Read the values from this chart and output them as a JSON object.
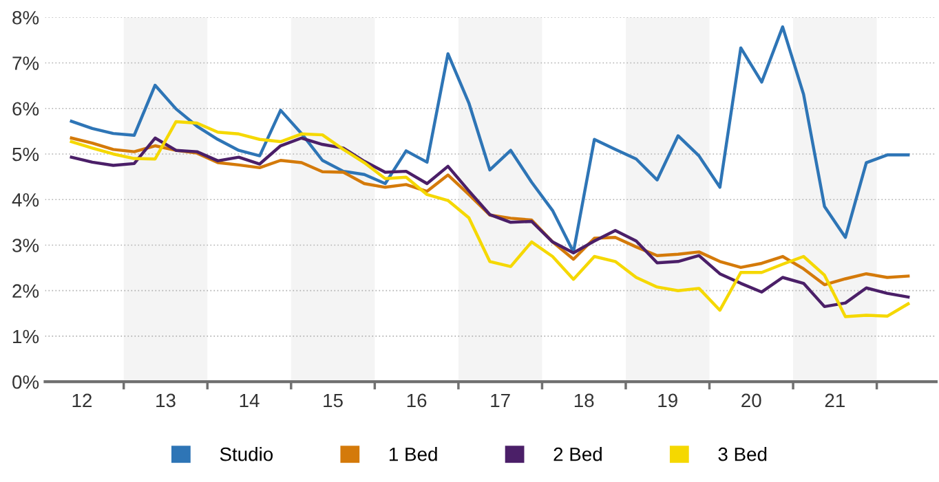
{
  "chart_data": {
    "type": "line",
    "x": [
      11.875,
      12.125,
      12.375,
      12.625,
      12.875,
      13.125,
      13.375,
      13.625,
      13.875,
      14.125,
      14.375,
      14.625,
      14.875,
      15.125,
      15.375,
      15.625,
      15.875,
      16.125,
      16.375,
      16.625,
      16.875,
      17.125,
      17.375,
      17.625,
      17.875,
      18.125,
      18.375,
      18.625,
      18.875,
      19.125,
      19.375,
      19.625,
      19.875,
      20.125,
      20.375,
      20.625,
      20.875,
      21.125,
      21.375,
      21.625,
      21.875
    ],
    "series": [
      {
        "name": "Studio",
        "color": "#2e75b6",
        "values": [
          5.72,
          5.56,
          5.45,
          5.41,
          6.51,
          5.99,
          5.61,
          5.32,
          5.08,
          4.96,
          5.96,
          5.45,
          4.86,
          4.62,
          4.55,
          4.35,
          5.07,
          4.82,
          7.2,
          6.12,
          4.65,
          5.08,
          4.38,
          3.76,
          2.85,
          5.32,
          5.1,
          4.89,
          4.43,
          5.4,
          4.96,
          4.27,
          7.33,
          6.58,
          7.79,
          6.31,
          3.85,
          3.17,
          4.81,
          4.98,
          4.98
        ]
      },
      {
        "name": "1 Bed",
        "color": "#d47a0a",
        "values": [
          5.35,
          5.24,
          5.1,
          5.05,
          5.18,
          5.08,
          5.02,
          4.81,
          4.76,
          4.7,
          4.86,
          4.81,
          4.61,
          4.6,
          4.35,
          4.27,
          4.33,
          4.18,
          4.54,
          4.11,
          3.66,
          3.59,
          3.55,
          3.07,
          2.69,
          3.15,
          3.17,
          2.96,
          2.77,
          2.8,
          2.85,
          2.64,
          2.51,
          2.6,
          2.75,
          2.48,
          2.13,
          2.26,
          2.37,
          2.29,
          2.32
        ]
      },
      {
        "name": "2 Bed",
        "color": "#4b1f68",
        "values": [
          4.93,
          4.82,
          4.75,
          4.79,
          5.35,
          5.08,
          5.05,
          4.85,
          4.93,
          4.78,
          5.18,
          5.35,
          5.21,
          5.13,
          4.84,
          4.6,
          4.62,
          4.35,
          4.73,
          4.19,
          3.67,
          3.5,
          3.52,
          3.07,
          2.83,
          3.09,
          3.32,
          3.09,
          2.61,
          2.64,
          2.77,
          2.37,
          2.16,
          1.97,
          2.29,
          2.16,
          1.65,
          1.73,
          2.06,
          1.94,
          1.86
        ]
      },
      {
        "name": "3 Bed",
        "color": "#f5d800",
        "values": [
          5.27,
          5.13,
          5.0,
          4.9,
          4.89,
          5.71,
          5.68,
          5.48,
          5.44,
          5.32,
          5.27,
          5.44,
          5.42,
          5.1,
          4.81,
          4.46,
          4.49,
          4.11,
          3.98,
          3.6,
          2.64,
          2.53,
          3.07,
          2.75,
          2.25,
          2.75,
          2.64,
          2.29,
          2.08,
          2.0,
          2.05,
          1.57,
          2.4,
          2.4,
          2.58,
          2.75,
          2.34,
          1.43,
          1.46,
          1.44,
          1.71
        ]
      }
    ],
    "xlim": [
      11.56,
      22.21
    ],
    "xticks": [
      12,
      {
        "value": 12.5,
        "label": null
      },
      13,
      {
        "value": 13.5,
        "label": null
      },
      14,
      {
        "value": 14.5,
        "label": null
      },
      15,
      {
        "value": 15.5,
        "label": null
      },
      16,
      {
        "value": 16.5,
        "label": null
      },
      17,
      {
        "value": 17.5,
        "label": null
      },
      18,
      {
        "value": 18.5,
        "label": null
      },
      19,
      {
        "value": 19.5,
        "label": null
      },
      20,
      {
        "value": 20.5,
        "label": null
      },
      21,
      {
        "value": 21.5,
        "label": null
      }
    ],
    "ylim": [
      0,
      8
    ],
    "yticks": [
      {
        "value": 0,
        "label": "0%"
      },
      {
        "value": 1,
        "label": "1%"
      },
      {
        "value": 2,
        "label": "2%"
      },
      {
        "value": 3,
        "label": "3%"
      },
      {
        "value": 4,
        "label": "4%"
      },
      {
        "value": 5,
        "label": "5%"
      },
      {
        "value": 6,
        "label": "6%"
      },
      {
        "value": 7,
        "label": "7%"
      },
      {
        "value": 8,
        "label": "8%"
      }
    ],
    "bands": [
      {
        "axis": "x",
        "from": 12.5,
        "to": 13.5,
        "color": "#f4f4f4"
      },
      {
        "axis": "x",
        "from": 14.5,
        "to": 15.5,
        "color": "#f4f4f4"
      },
      {
        "axis": "x",
        "from": 16.5,
        "to": 17.5,
        "color": "#f4f4f4"
      },
      {
        "axis": "x",
        "from": 18.5,
        "to": 19.5,
        "color": "#f4f4f4"
      },
      {
        "axis": "x",
        "from": 20.5,
        "to": 21.5,
        "color": "#f4f4f4"
      }
    ],
    "grid": "y",
    "legend": "bottom",
    "marker": "none",
    "line_style": "solid"
  }
}
